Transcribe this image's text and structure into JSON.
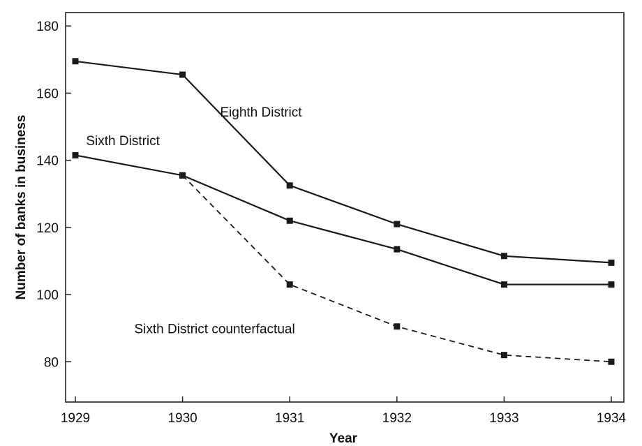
{
  "chart_data": {
    "type": "line",
    "x": [
      1929,
      1930,
      1931,
      1932,
      1933,
      1934
    ],
    "xlabel": "Year",
    "ylabel": "Number of banks in business",
    "xlim": [
      1929,
      1934
    ],
    "ylim": [
      68,
      184
    ],
    "yticks": [
      80,
      100,
      120,
      140,
      160,
      180
    ],
    "xticks": [
      "1929",
      "1930",
      "1931",
      "1932",
      "1933",
      "1934"
    ],
    "grid": false,
    "legend": "none",
    "series": [
      {
        "name": "Eighth District",
        "style": "solid",
        "points": [
          [
            1929,
            169.5
          ],
          [
            1930,
            165.5
          ],
          [
            1931,
            132.5
          ],
          [
            1932,
            121
          ],
          [
            1933,
            111.5
          ],
          [
            1934,
            109.5
          ]
        ]
      },
      {
        "name": "Sixth District",
        "style": "solid",
        "points": [
          [
            1929,
            141.5
          ],
          [
            1930,
            135.5
          ],
          [
            1931,
            122
          ],
          [
            1932,
            113.5
          ],
          [
            1933,
            103
          ],
          [
            1934,
            103
          ]
        ]
      },
      {
        "name": "Sixth District counterfactual",
        "style": "dashed",
        "points": [
          [
            1930,
            135.5
          ],
          [
            1931,
            103
          ],
          [
            1932,
            90.5
          ],
          [
            1933,
            82
          ],
          [
            1934,
            80
          ]
        ]
      }
    ],
    "annotations": [
      {
        "text": "Eighth District",
        "near": [
          1930.35,
          153
        ]
      },
      {
        "text": "Sixth District",
        "near": [
          1929.1,
          144.5
        ]
      },
      {
        "text": "Sixth District counterfactual",
        "near": [
          1929.55,
          88.5
        ]
      }
    ],
    "colors": {
      "line": "#1a1a1a",
      "marker": "#1a1a1a",
      "axis": "#222222"
    }
  }
}
